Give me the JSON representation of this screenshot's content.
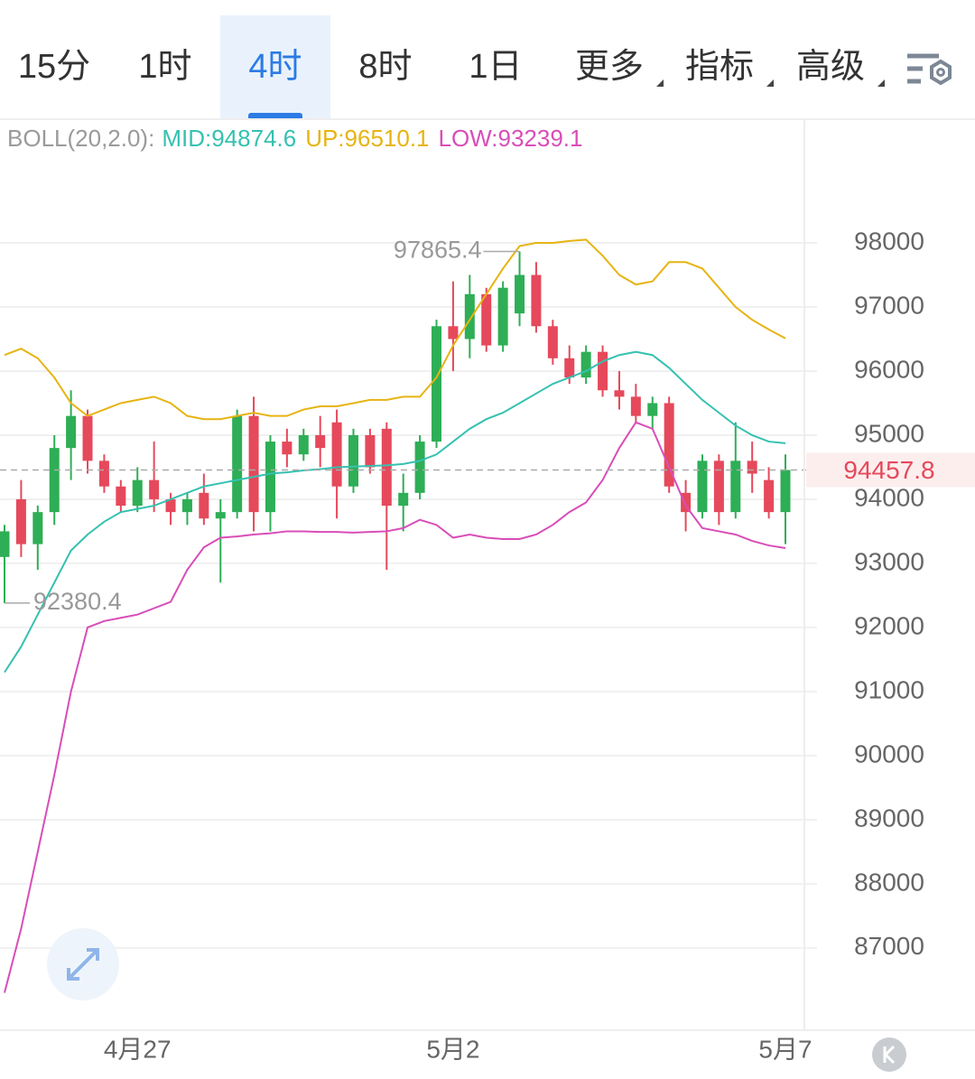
{
  "tabs": {
    "items": [
      "15分",
      "1时",
      "4时",
      "8时",
      "1日",
      "更多",
      "指标",
      "高级"
    ],
    "selected": 2
  },
  "chart_data": {
    "type": "candlestick",
    "indicator": "BOLL(20,2.0):",
    "categories": [
      null,
      null,
      null,
      null,
      null,
      null,
      null,
      null,
      "4月27",
      null,
      null,
      null,
      null,
      null,
      null,
      null,
      null,
      null,
      null,
      null,
      null,
      null,
      null,
      null,
      null,
      null,
      null,
      "5月2",
      null,
      null,
      null,
      null,
      null,
      null,
      null,
      null,
      null,
      null,
      null,
      null,
      null,
      null,
      null,
      null,
      null,
      null,
      null,
      "5月7"
    ],
    "up_color": "#2eae56",
    "down_color": "#e5495b",
    "candles": [
      {
        "open": 93100,
        "high": 93600,
        "low": 92380.4,
        "close": 93500
      },
      {
        "open": 94000,
        "high": 94300,
        "low": 93100,
        "close": 93300
      },
      {
        "open": 93300,
        "high": 93900,
        "low": 92900,
        "close": 93800
      },
      {
        "open": 93800,
        "high": 95000,
        "low": 93600,
        "close": 94800
      },
      {
        "open": 94800,
        "high": 95700,
        "low": 94300,
        "close": 95300
      },
      {
        "open": 95300,
        "high": 95400,
        "low": 94400,
        "close": 94600
      },
      {
        "open": 94600,
        "high": 94700,
        "low": 94100,
        "close": 94200
      },
      {
        "open": 94200,
        "high": 94300,
        "low": 93800,
        "close": 93900
      },
      {
        "open": 93900,
        "high": 94500,
        "low": 93800,
        "close": 94300
      },
      {
        "open": 94300,
        "high": 94900,
        "low": 93800,
        "close": 94000
      },
      {
        "open": 94000,
        "high": 94100,
        "low": 93600,
        "close": 93800
      },
      {
        "open": 93800,
        "high": 94100,
        "low": 93600,
        "close": 94000
      },
      {
        "open": 94100,
        "high": 94400,
        "low": 93600,
        "close": 93700
      },
      {
        "open": 93700,
        "high": 94000,
        "low": 92700,
        "close": 93800
      },
      {
        "open": 93800,
        "high": 95400,
        "low": 93700,
        "close": 95300
      },
      {
        "open": 95300,
        "high": 95600,
        "low": 93500,
        "close": 93800
      },
      {
        "open": 93800,
        "high": 95000,
        "low": 93500,
        "close": 94900
      },
      {
        "open": 94900,
        "high": 95100,
        "low": 94500,
        "close": 94700
      },
      {
        "open": 94700,
        "high": 95100,
        "low": 94600,
        "close": 95000
      },
      {
        "open": 95000,
        "high": 95300,
        "low": 94500,
        "close": 94800
      },
      {
        "open": 95200,
        "high": 95400,
        "low": 93700,
        "close": 94200
      },
      {
        "open": 94200,
        "high": 95100,
        "low": 94100,
        "close": 95000
      },
      {
        "open": 95000,
        "high": 95100,
        "low": 94400,
        "close": 94500
      },
      {
        "open": 95100,
        "high": 95200,
        "low": 92900,
        "close": 93900
      },
      {
        "open": 93900,
        "high": 94400,
        "low": 93500,
        "close": 94100
      },
      {
        "open": 94100,
        "high": 95000,
        "low": 94000,
        "close": 94900
      },
      {
        "open": 94900,
        "high": 96800,
        "low": 94800,
        "close": 96700
      },
      {
        "open": 96700,
        "high": 97400,
        "low": 96000,
        "close": 96500
      },
      {
        "open": 96500,
        "high": 97500,
        "low": 96200,
        "close": 97200
      },
      {
        "open": 97200,
        "high": 97300,
        "low": 96300,
        "close": 96400
      },
      {
        "open": 96400,
        "high": 97400,
        "low": 96300,
        "close": 97300
      },
      {
        "open": 96900,
        "high": 97865.4,
        "low": 96700,
        "close": 97500
      },
      {
        "open": 97500,
        "high": 97700,
        "low": 96600,
        "close": 96700
      },
      {
        "open": 96700,
        "high": 96800,
        "low": 96100,
        "close": 96200
      },
      {
        "open": 96200,
        "high": 96400,
        "low": 95800,
        "close": 95900
      },
      {
        "open": 95900,
        "high": 96400,
        "low": 95800,
        "close": 96300
      },
      {
        "open": 96300,
        "high": 96400,
        "low": 95600,
        "close": 95700
      },
      {
        "open": 95700,
        "high": 96000,
        "low": 95400,
        "close": 95600
      },
      {
        "open": 95600,
        "high": 95800,
        "low": 95200,
        "close": 95300
      },
      {
        "open": 95300,
        "high": 95600,
        "low": 95100,
        "close": 95500
      },
      {
        "open": 95500,
        "high": 95600,
        "low": 94100,
        "close": 94200
      },
      {
        "open": 94100,
        "high": 94300,
        "low": 93500,
        "close": 93800
      },
      {
        "open": 93800,
        "high": 94700,
        "low": 93700,
        "close": 94600
      },
      {
        "open": 94600,
        "high": 94700,
        "low": 93600,
        "close": 93800
      },
      {
        "open": 93800,
        "high": 95200,
        "low": 93700,
        "close": 94600
      },
      {
        "open": 94600,
        "high": 94900,
        "low": 94100,
        "close": 94400
      },
      {
        "open": 94300,
        "high": 94500,
        "low": 93700,
        "close": 93800
      },
      {
        "open": 93800,
        "high": 94700,
        "low": 93300,
        "close": 94457.8
      }
    ],
    "series": [
      {
        "name": "MID:",
        "color": "#35c1b1",
        "values": [
          91300,
          91700,
          92200,
          92700,
          93200,
          93450,
          93650,
          93800,
          93850,
          93900,
          94000,
          94100,
          94200,
          94250,
          94300,
          94350,
          94400,
          94420,
          94450,
          94470,
          94500,
          94510,
          94520,
          94530,
          94550,
          94600,
          94700,
          94900,
          95100,
          95250,
          95350,
          95500,
          95650,
          95800,
          95900,
          96000,
          96150,
          96250,
          96300,
          96250,
          96050,
          95800,
          95550,
          95350,
          95150,
          95000,
          94900,
          94874.6
        ]
      },
      {
        "name": "UP:",
        "color": "#e6b412",
        "values": [
          96250,
          96350,
          96200,
          95900,
          95500,
          95300,
          95400,
          95500,
          95550,
          95600,
          95500,
          95300,
          95250,
          95250,
          95300,
          95350,
          95300,
          95300,
          95400,
          95450,
          95450,
          95500,
          95550,
          95550,
          95600,
          95600,
          95900,
          96400,
          96800,
          97200,
          97600,
          97950,
          98000,
          98000,
          98030,
          98050,
          97800,
          97500,
          97350,
          97400,
          97700,
          97700,
          97600,
          97300,
          97000,
          96800,
          96650,
          96510.1
        ]
      },
      {
        "name": "LOW:",
        "color": "#d94db8",
        "values": [
          86300,
          87300,
          88500,
          89700,
          91000,
          92000,
          92100,
          92150,
          92200,
          92300,
          92400,
          92900,
          93250,
          93400,
          93420,
          93450,
          93470,
          93500,
          93500,
          93490,
          93490,
          93480,
          93490,
          93500,
          93550,
          93680,
          93600,
          93400,
          93450,
          93400,
          93380,
          93380,
          93450,
          93600,
          93800,
          93950,
          94300,
          94800,
          95200,
          95100,
          94500,
          93900,
          93550,
          93500,
          93450,
          93350,
          93280,
          93239.1
        ]
      }
    ],
    "ylim": [
      85730,
      99930
    ],
    "yticks": [
      87000,
      88000,
      89000,
      90000,
      91000,
      92000,
      93000,
      94000,
      95000,
      96000,
      97000,
      98000
    ],
    "grid": true,
    "high_marker": 31,
    "low_marker": 0
  }
}
